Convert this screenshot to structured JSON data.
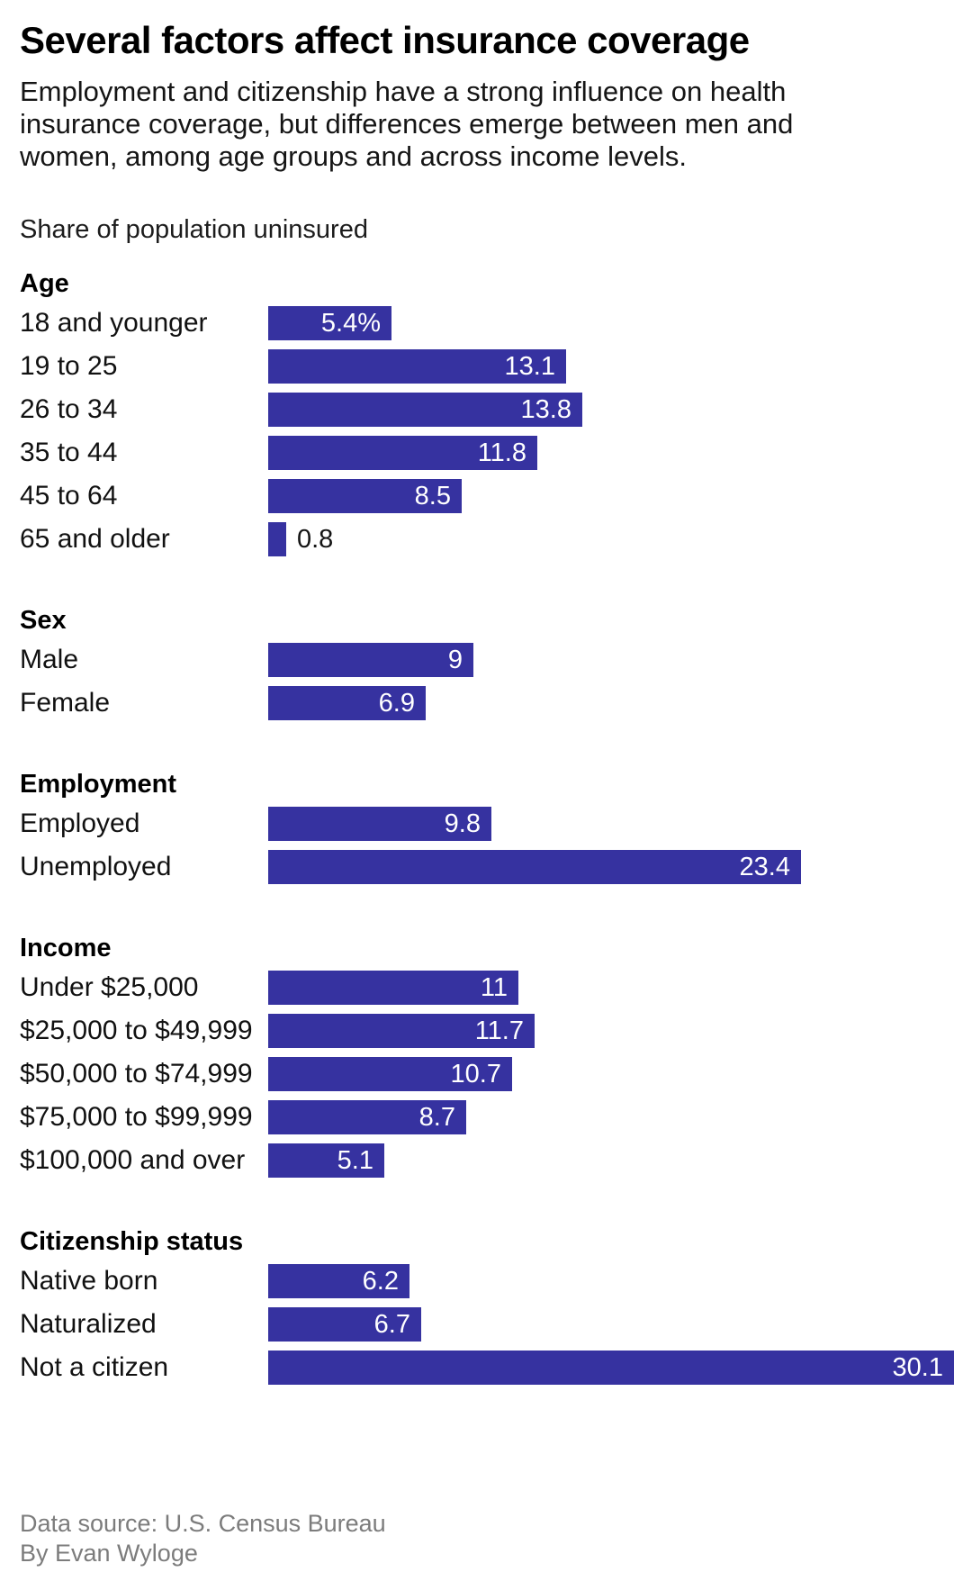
{
  "header": {
    "title": "Several factors affect insurance coverage",
    "subtitle": "Employment and citizenship have a strong influence on health insurance coverage, but differences emerge between men and women, among age groups and across income levels.",
    "kicker": "Share of population uninsured"
  },
  "chart_data": {
    "type": "bar",
    "orientation": "horizontal",
    "title": "Several factors affect insurance coverage",
    "value_unit": "percent share of population uninsured",
    "xlim": [
      0,
      30.1
    ],
    "grid": false,
    "legend": "none",
    "bar_color": "#3632a0",
    "in_bar_value_color": "#ffffff",
    "outside_value_color": "#141414",
    "groups": [
      {
        "heading": "Age",
        "rows": [
          {
            "label": "18 and younger",
            "value": 5.4,
            "display": "5.4%"
          },
          {
            "label": "19 to 25",
            "value": 13.1,
            "display": "13.1"
          },
          {
            "label": "26 to 34",
            "value": 13.8,
            "display": "13.8"
          },
          {
            "label": "35 to 44",
            "value": 11.8,
            "display": "11.8"
          },
          {
            "label": "45 to 64",
            "value": 8.5,
            "display": "8.5"
          },
          {
            "label": "65 and older",
            "value": 0.8,
            "display": "0.8"
          }
        ]
      },
      {
        "heading": "Sex",
        "rows": [
          {
            "label": "Male",
            "value": 9,
            "display": "9"
          },
          {
            "label": "Female",
            "value": 6.9,
            "display": "6.9"
          }
        ]
      },
      {
        "heading": "Employment",
        "rows": [
          {
            "label": "Employed",
            "value": 9.8,
            "display": "9.8"
          },
          {
            "label": "Unemployed",
            "value": 23.4,
            "display": "23.4"
          }
        ]
      },
      {
        "heading": "Income",
        "rows": [
          {
            "label": "Under $25,000",
            "value": 11,
            "display": "11"
          },
          {
            "label": "$25,000 to $49,999",
            "value": 11.7,
            "display": "11.7"
          },
          {
            "label": "$50,000 to $74,999",
            "value": 10.7,
            "display": "10.7"
          },
          {
            "label": "$75,000 to $99,999",
            "value": 8.7,
            "display": "8.7"
          },
          {
            "label": "$100,000 and over",
            "value": 5.1,
            "display": "5.1"
          }
        ]
      },
      {
        "heading": "Citizenship status",
        "rows": [
          {
            "label": "Native born",
            "value": 6.2,
            "display": "6.2"
          },
          {
            "label": "Naturalized",
            "value": 6.7,
            "display": "6.7"
          },
          {
            "label": "Not a citizen",
            "value": 30.1,
            "display": "30.1"
          }
        ]
      }
    ]
  },
  "footer": {
    "source": "Data source: U.S. Census Bureau",
    "byline": "By Evan Wyloge"
  }
}
